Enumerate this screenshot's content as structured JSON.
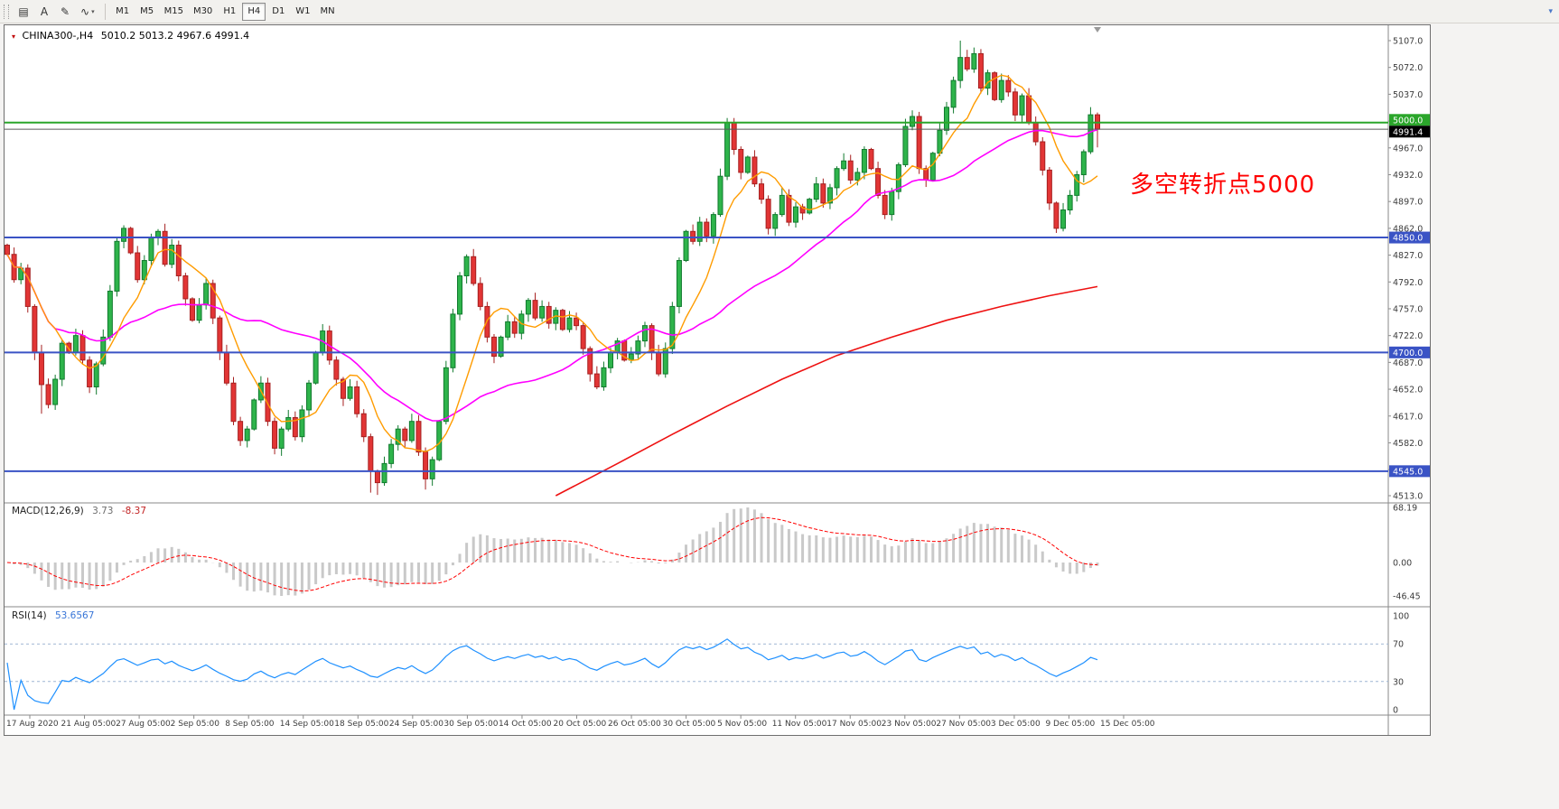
{
  "toolbar": {
    "icons": [
      {
        "name": "chart-type-icon",
        "glyph": "▤"
      },
      {
        "name": "annotate-text-icon",
        "glyph": "A"
      },
      {
        "name": "draw-tool-icon",
        "glyph": "✎"
      },
      {
        "name": "indicators-icon",
        "glyph": "∿"
      }
    ],
    "indicators_caret": "▾",
    "timeframes": [
      "M1",
      "M5",
      "M15",
      "M30",
      "H1",
      "H4",
      "D1",
      "W1",
      "MN"
    ],
    "selected_timeframe": "H4",
    "overflow_glyph": "▾"
  },
  "chart": {
    "title_marker": "▾",
    "symbol_period": "CHINA300-,H4",
    "ohlc_display": "5010.2 5013.2 4967.6 4991.4",
    "annotation": {
      "text": "多空转折点5000",
      "color": "#ff0000"
    },
    "current_price": {
      "value": 4991.4,
      "label": "4991.4",
      "line_color": "#5a5a5a",
      "badge_color": "#000000"
    },
    "levels": [
      {
        "price": 5000.0,
        "label": "5000.0",
        "color": "#2ba62b"
      },
      {
        "price": 4850.0,
        "label": "4850.0",
        "color": "#3a53c5"
      },
      {
        "price": 4700.0,
        "label": "4700.0",
        "color": "#3a53c5"
      },
      {
        "price": 4545.0,
        "label": "4545.0",
        "color": "#3a53c5"
      }
    ],
    "price_axis": [
      "5107.0",
      "5072.0",
      "5037.0",
      "5002.0",
      "4967.0",
      "4932.0",
      "4897.0",
      "4862.0",
      "4827.0",
      "4792.0",
      "4757.0",
      "4722.0",
      "4687.0",
      "4652.0",
      "4617.0",
      "4582.0",
      "4547.0",
      "4513.0"
    ],
    "time_axis": [
      "17 Aug 2020",
      "21 Aug 05:00",
      "27 Aug 05:00",
      "2 Sep 05:00",
      "8 Sep 05:00",
      "14 Sep 05:00",
      "18 Sep 05:00",
      "24 Sep 05:00",
      "30 Sep 05:00",
      "14 Oct 05:00",
      "20 Oct 05:00",
      "26 Oct 05:00",
      "30 Oct 05:00",
      "5 Nov 05:00",
      "11 Nov 05:00",
      "17 Nov 05:00",
      "23 Nov 05:00",
      "27 Nov 05:00",
      "3 Dec 05:00",
      "9 Dec 05:00",
      "15 Dec 05:00"
    ]
  },
  "indicators": {
    "macd": {
      "label": "MACD(12,26,9)",
      "value_main": "3.73",
      "value_signal": "-8.37",
      "axis": [
        "68.19",
        "0.00",
        "-46.45"
      ]
    },
    "rsi": {
      "label": "RSI(14)",
      "value": "53.6567",
      "axis": [
        "100",
        "70",
        "30",
        "0"
      ]
    }
  },
  "colors": {
    "candle_up": "#2eb44b",
    "candle_up_border": "#117a2e",
    "candle_down": "#e23535",
    "candle_down_border": "#a62020",
    "ma_fast": "#ff9c00",
    "ma_mid": "#ff00ff",
    "ma_long": "#ee1111",
    "macd_hist": "#c9c9c9",
    "macd_signal": "#ff0000",
    "rsi_line": "#1e90ff",
    "rsi_levels": "#9fb6d4",
    "axis_text": "#3c3c3c",
    "level_blue": "#3a53c5",
    "level_green": "#2ba62b"
  },
  "chart_data": {
    "type": "candlestick",
    "title": "CHINA300-,H4",
    "last_bar": {
      "open": 5010.2,
      "high": 5013.2,
      "low": 4967.6,
      "close": 4991.4
    },
    "price_range": {
      "min": 4513.0,
      "max": 5107.0
    },
    "first_open": 4840,
    "closes": [
      4828,
      4795,
      4810,
      4760,
      4700,
      4658,
      4632,
      4665,
      4712,
      4700,
      4722,
      4690,
      4655,
      4685,
      4720,
      4780,
      4845,
      4862,
      4830,
      4795,
      4820,
      4850,
      4858,
      4815,
      4840,
      4800,
      4770,
      4742,
      4762,
      4790,
      4745,
      4700,
      4660,
      4610,
      4585,
      4600,
      4638,
      4660,
      4610,
      4575,
      4600,
      4615,
      4590,
      4625,
      4660,
      4700,
      4728,
      4690,
      4665,
      4640,
      4655,
      4620,
      4590,
      4545,
      4530,
      4555,
      4580,
      4600,
      4585,
      4610,
      4570,
      4535,
      4560,
      4610,
      4680,
      4750,
      4800,
      4825,
      4790,
      4760,
      4720,
      4695,
      4720,
      4740,
      4725,
      4750,
      4768,
      4745,
      4760,
      4738,
      4755,
      4730,
      4745,
      4735,
      4705,
      4672,
      4655,
      4680,
      4700,
      4715,
      4690,
      4698,
      4715,
      4735,
      4700,
      4672,
      4705,
      4760,
      4820,
      4858,
      4845,
      4870,
      4852,
      4880,
      4930,
      5000,
      4965,
      4935,
      4955,
      4920,
      4900,
      4862,
      4880,
      4905,
      4870,
      4890,
      4882,
      4900,
      4920,
      4895,
      4915,
      4940,
      4950,
      4925,
      4935,
      4965,
      4940,
      4905,
      4880,
      4910,
      4945,
      4995,
      5008,
      4940,
      4925,
      4960,
      4990,
      5020,
      5055,
      5085,
      5070,
      5090,
      5045,
      5065,
      5030,
      5055,
      5040,
      5010,
      5035,
      5000,
      4975,
      4938,
      4895,
      4862,
      4886,
      4905,
      4932,
      4962,
      5010.2,
      4991.4
    ],
    "wick_overrides": {
      "5": {
        "low": 4620
      },
      "53": {
        "low": 4517
      },
      "54": {
        "low": 4514
      },
      "61": {
        "low": 4521
      },
      "105": {
        "high": 5006
      },
      "139": {
        "high": 5107
      },
      "141": {
        "high": 5098
      },
      "153": {
        "low": 4856
      },
      "159": {
        "high": 5013.2,
        "low": 4967.6
      }
    },
    "ma_fast_period": 8,
    "ma_mid_period": 30,
    "ma_long_points": [
      [
        80,
        4513
      ],
      [
        89,
        4555
      ],
      [
        97,
        4593
      ],
      [
        105,
        4630
      ],
      [
        113,
        4665
      ],
      [
        121,
        4696
      ],
      [
        129,
        4720
      ],
      [
        137,
        4742
      ],
      [
        145,
        4760
      ],
      [
        152,
        4774
      ],
      [
        159,
        4786
      ]
    ],
    "macd_params": [
      12,
      26,
      9
    ],
    "rsi_period": 14,
    "rsi_levels": [
      70,
      30
    ]
  }
}
